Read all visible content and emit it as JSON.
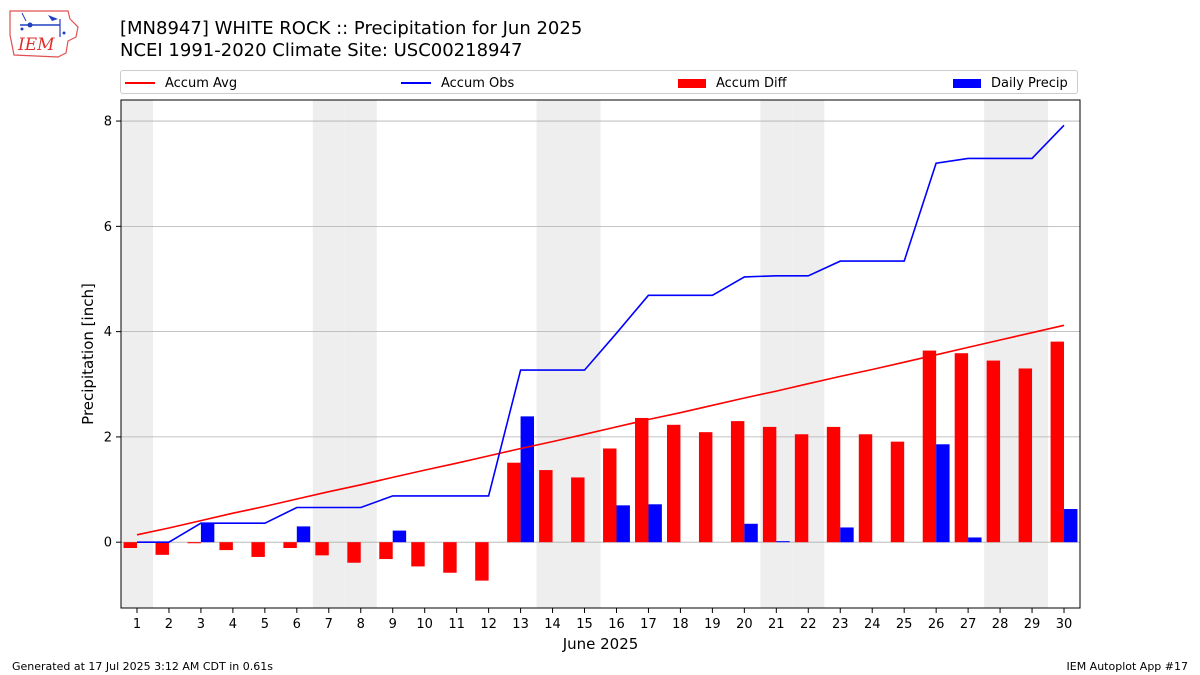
{
  "header": {
    "title_line1": "[MN8947] WHITE ROCK :: Precipitation for Jun 2025",
    "title_line2": "NCEI 1991-2020 Climate Site: USC00218947"
  },
  "logo": {
    "text": "IEM",
    "icon": "iem-logo-icon"
  },
  "footer": {
    "generated": "Generated at 17 Jul 2025 3:12 AM CDT in 0.61s",
    "app": "IEM Autoplot App #17"
  },
  "colors": {
    "avg": "#ff0000",
    "obs": "#0000ff",
    "diff": "#ff0000",
    "daily": "#0000ff",
    "weekend_band": "#eeeeee",
    "grid": "#b0b0b0"
  },
  "chart_data": {
    "type": "bar",
    "xlabel": "June 2025",
    "ylabel": "Precipitation [inch]",
    "ylim": [
      -1.25,
      8.4
    ],
    "yticks": [
      0,
      2,
      4,
      6,
      8
    ],
    "grid": "y",
    "legend_placement": "top",
    "categories": [
      "1",
      "2",
      "3",
      "4",
      "5",
      "6",
      "7",
      "8",
      "9",
      "10",
      "11",
      "12",
      "13",
      "14",
      "15",
      "16",
      "17",
      "18",
      "19",
      "20",
      "21",
      "22",
      "23",
      "24",
      "25",
      "26",
      "27",
      "28",
      "29",
      "30"
    ],
    "weekend_days": [
      1,
      7,
      8,
      14,
      15,
      21,
      22,
      28,
      29
    ],
    "legend": [
      "Accum Avg",
      "Accum Obs",
      "Accum Diff",
      "Daily Precip"
    ],
    "series": [
      {
        "name": "Accum Avg",
        "kind": "line",
        "values": [
          0.14,
          0.27,
          0.41,
          0.55,
          0.68,
          0.82,
          0.96,
          1.09,
          1.23,
          1.37,
          1.5,
          1.64,
          1.78,
          1.91,
          2.05,
          2.19,
          2.33,
          2.46,
          2.6,
          2.74,
          2.87,
          3.01,
          3.15,
          3.28,
          3.42,
          3.56,
          3.7,
          3.84,
          3.98,
          4.12
        ]
      },
      {
        "name": "Accum Obs",
        "kind": "line",
        "values": [
          0.0,
          0.0,
          0.36,
          0.36,
          0.36,
          0.66,
          0.66,
          0.66,
          0.88,
          0.88,
          0.88,
          0.88,
          3.27,
          3.27,
          3.27,
          3.97,
          4.69,
          4.69,
          4.69,
          5.04,
          5.06,
          5.06,
          5.34,
          5.34,
          5.34,
          7.2,
          7.29,
          7.29,
          7.29,
          7.92
        ]
      },
      {
        "name": "Accum Diff",
        "kind": "bar",
        "values": [
          -0.11,
          -0.24,
          -0.02,
          -0.15,
          -0.28,
          -0.11,
          -0.25,
          -0.39,
          -0.32,
          -0.46,
          -0.58,
          -0.73,
          1.51,
          1.37,
          1.23,
          1.78,
          2.36,
          2.23,
          2.09,
          2.3,
          2.19,
          2.05,
          2.19,
          2.05,
          1.91,
          3.64,
          3.59,
          3.45,
          3.3,
          3.81
        ]
      },
      {
        "name": "Daily Precip",
        "kind": "bar",
        "values": [
          0.0,
          0.0,
          0.36,
          0.0,
          0.0,
          0.3,
          0.0,
          0.0,
          0.22,
          0.0,
          0.0,
          0.0,
          2.39,
          0.0,
          0.0,
          0.7,
          0.72,
          0.0,
          0.0,
          0.35,
          0.02,
          0.0,
          0.28,
          0.0,
          0.0,
          1.86,
          0.09,
          0.0,
          0.0,
          0.63
        ]
      }
    ]
  }
}
